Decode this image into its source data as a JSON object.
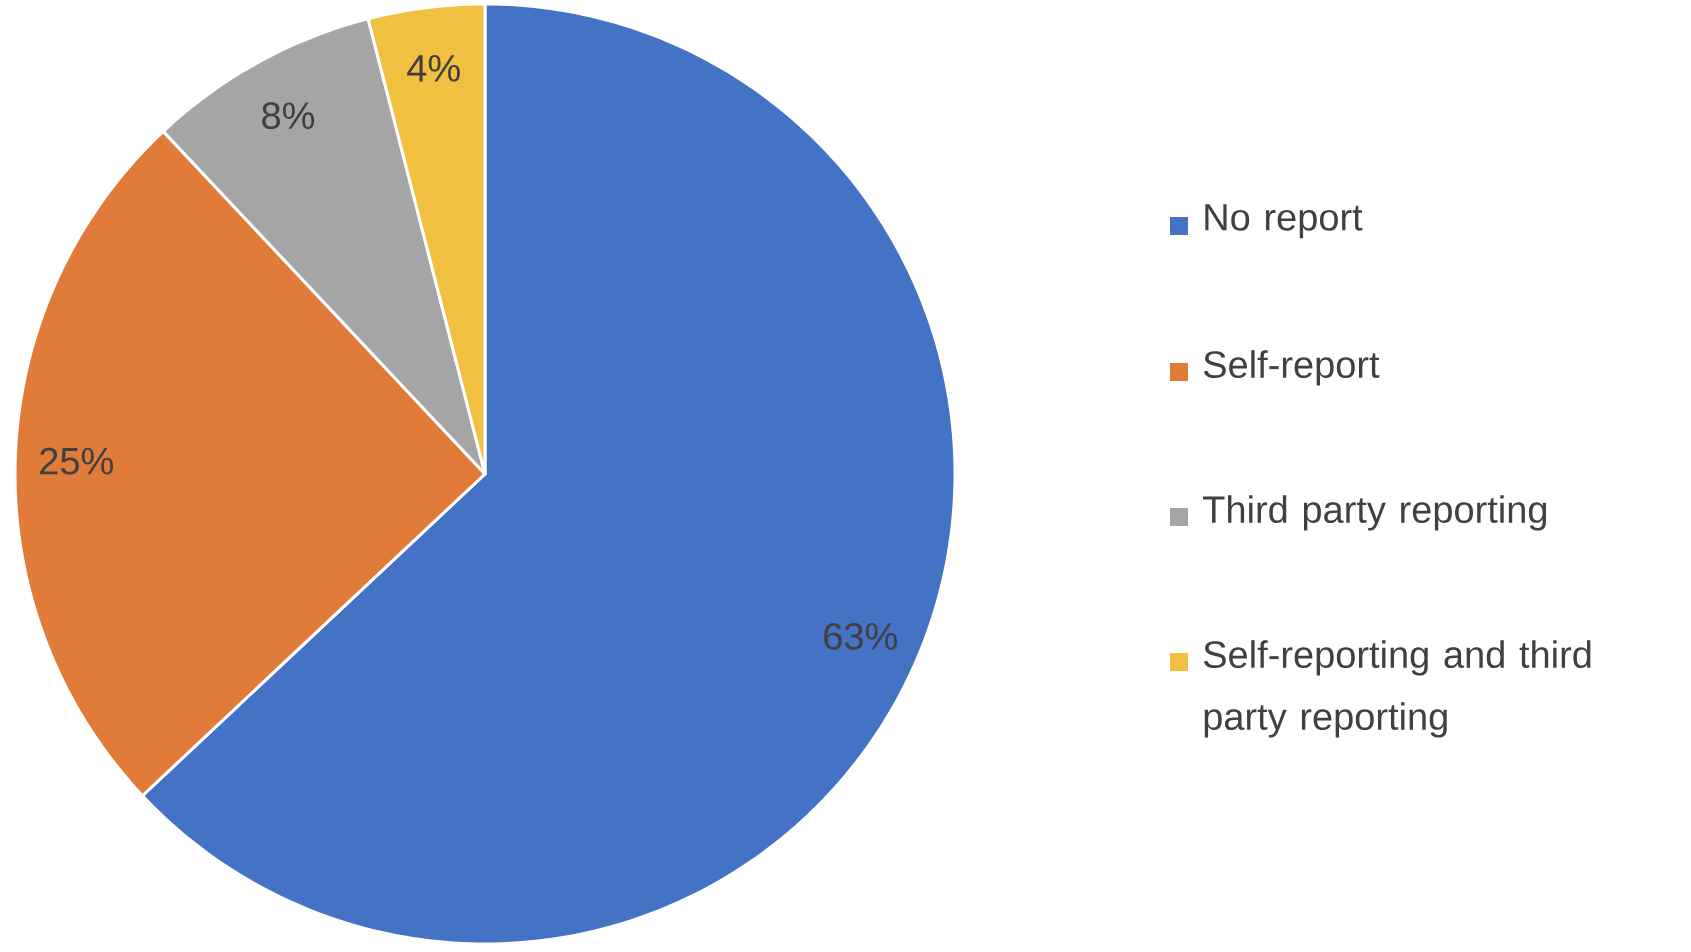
{
  "chart_data": {
    "type": "pie",
    "categories": [
      "No report",
      "Self-report",
      "Third party reporting",
      "Self-reporting and third party reporting"
    ],
    "values": [
      63,
      25,
      8,
      4
    ],
    "value_labels": [
      "63%",
      "25%",
      "8%",
      "4%"
    ],
    "colors": [
      "#4472c4",
      "#e07b39",
      "#a5a5a5",
      "#f2c040"
    ],
    "legend": "right"
  }
}
